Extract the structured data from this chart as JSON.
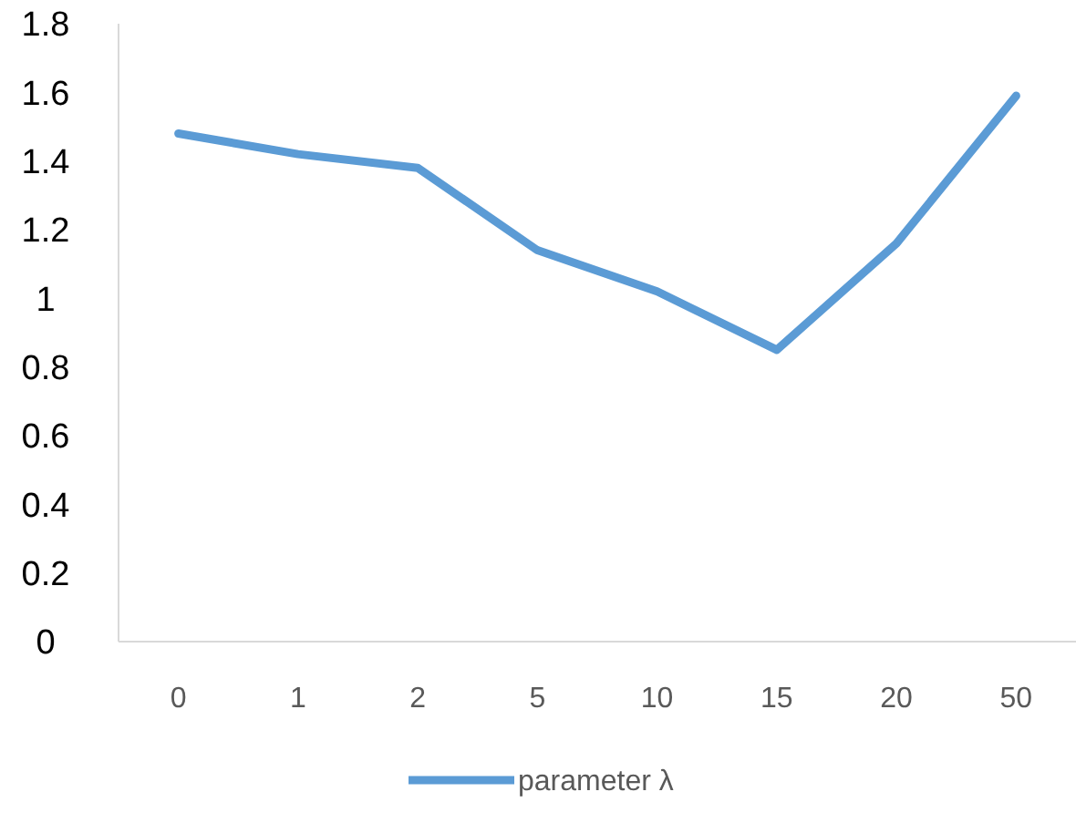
{
  "chart_data": {
    "type": "line",
    "categories": [
      "0",
      "1",
      "2",
      "5",
      "10",
      "15",
      "20",
      "50"
    ],
    "series": [
      {
        "name": "parameter λ",
        "color": "#5b9bd5",
        "values": [
          1.48,
          1.42,
          1.38,
          1.14,
          1.02,
          0.85,
          1.16,
          1.59
        ]
      }
    ],
    "ylim": [
      0,
      1.8
    ],
    "yticks": [
      0,
      0.2,
      0.4,
      0.6,
      0.8,
      1,
      1.2,
      1.4,
      1.6,
      1.8
    ],
    "grid": false,
    "legend": "bottom",
    "marker": "none",
    "line_style": "solid"
  }
}
